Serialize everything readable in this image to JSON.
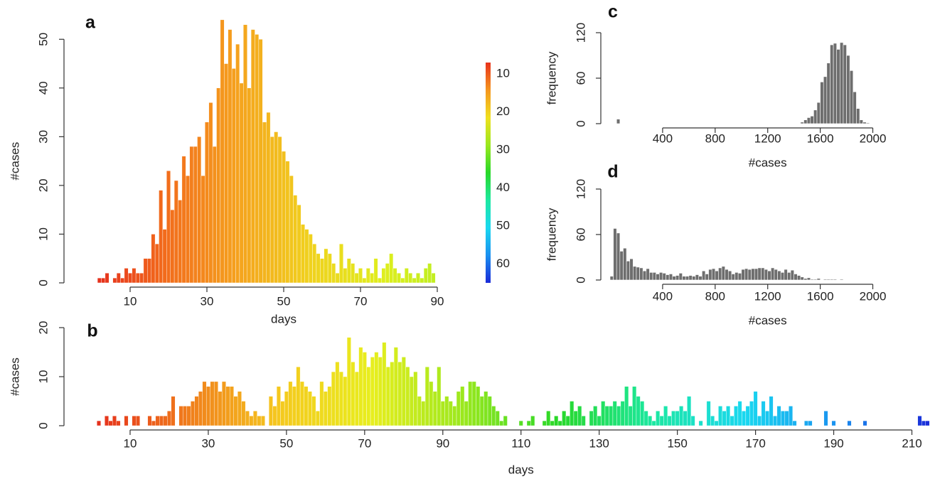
{
  "chart_data": [
    {
      "type": "bar",
      "label": "a",
      "xlabel": "days",
      "ylabel": "#cases",
      "x": [
        1,
        2,
        3,
        4,
        5,
        6,
        7,
        8,
        9,
        10,
        11,
        12,
        13,
        14,
        15,
        16,
        17,
        18,
        19,
        20,
        21,
        22,
        23,
        24,
        25,
        26,
        27,
        28,
        29,
        30,
        31,
        32,
        33,
        34,
        35,
        36,
        37,
        38,
        39,
        40,
        41,
        42,
        43,
        44,
        45,
        46,
        47,
        48,
        49,
        50,
        51,
        52,
        53,
        54,
        55,
        56,
        57,
        58,
        59,
        60,
        61,
        62,
        63,
        64,
        65,
        66,
        67,
        68,
        69,
        70,
        71,
        72,
        73,
        74,
        75,
        76,
        77,
        78,
        79,
        80,
        81,
        82,
        83,
        84,
        85,
        86,
        87,
        88,
        89,
        90
      ],
      "values": [
        0,
        1,
        1,
        2,
        0,
        1,
        2,
        1,
        3,
        2,
        3,
        2,
        2,
        5,
        5,
        10,
        8,
        19,
        11,
        23,
        15,
        21,
        17,
        26,
        22,
        28,
        28,
        30,
        22,
        33,
        37,
        28,
        40,
        54,
        45,
        52,
        44,
        49,
        41,
        53,
        40,
        52,
        51,
        50,
        33,
        35,
        30,
        31,
        30,
        27,
        25,
        22,
        18,
        16,
        12,
        11,
        10,
        8,
        6,
        5,
        7,
        6,
        4,
        2,
        8,
        3,
        5,
        4,
        2,
        3,
        1,
        3,
        2,
        5,
        1,
        3,
        4,
        6,
        3,
        2,
        1,
        3,
        2,
        1,
        2,
        1,
        3,
        4,
        2,
        0
      ],
      "xlim": [
        0,
        95
      ],
      "ylim": [
        0,
        55
      ],
      "xticks": [
        10,
        30,
        50,
        70,
        90
      ],
      "yticks": [
        0,
        10,
        20,
        30,
        40,
        50
      ],
      "colors": [
        "#e42a1c",
        "#f26b1c",
        "#f5a21e",
        "#f0d21e",
        "#dfee1e",
        "#b4ee22"
      ],
      "colorbar": {
        "lim": [
          7,
          65
        ],
        "ticks": [
          10,
          20,
          30,
          40,
          50,
          60
        ],
        "colors": [
          "#e8321c",
          "#f5961e",
          "#f0e01e",
          "#9ae81e",
          "#28d828",
          "#1ce8a0",
          "#1ad8f0",
          "#1a90f0",
          "#1a2ad8"
        ]
      }
    },
    {
      "type": "bar",
      "label": "b",
      "xlabel": "days",
      "ylabel": "#cases",
      "x": [
        1,
        2,
        3,
        4,
        5,
        6,
        7,
        8,
        9,
        10,
        11,
        12,
        13,
        14,
        15,
        16,
        17,
        18,
        19,
        20,
        21,
        22,
        23,
        24,
        25,
        26,
        27,
        28,
        29,
        30,
        31,
        32,
        33,
        34,
        35,
        36,
        37,
        38,
        39,
        40,
        41,
        42,
        43,
        44,
        45,
        46,
        47,
        48,
        49,
        50,
        51,
        52,
        53,
        54,
        55,
        56,
        57,
        58,
        59,
        60,
        61,
        62,
        63,
        64,
        65,
        66,
        67,
        68,
        69,
        70,
        71,
        72,
        73,
        74,
        75,
        76,
        77,
        78,
        79,
        80,
        81,
        82,
        83,
        84,
        85,
        86,
        87,
        88,
        89,
        90,
        91,
        92,
        93,
        94,
        95,
        96,
        97,
        98,
        99,
        100,
        101,
        102,
        103,
        104,
        105,
        106,
        107,
        108,
        109,
        110,
        111,
        112,
        113,
        114,
        115,
        116,
        117,
        118,
        119,
        120,
        121,
        122,
        123,
        124,
        125,
        126,
        127,
        128,
        129,
        130,
        131,
        132,
        133,
        134,
        135,
        136,
        137,
        138,
        139,
        140,
        141,
        142,
        143,
        144,
        145,
        146,
        147,
        148,
        149,
        150,
        151,
        152,
        153,
        154,
        155,
        156,
        157,
        158,
        159,
        160,
        161,
        162,
        163,
        164,
        165,
        166,
        167,
        168,
        169,
        170,
        171,
        172,
        173,
        174,
        175,
        176,
        177,
        178,
        179,
        180,
        181,
        182,
        183,
        184,
        185,
        186,
        187,
        188,
        189,
        190,
        191,
        192,
        193,
        194,
        195,
        196,
        197,
        198,
        199,
        200,
        201,
        202,
        203,
        204,
        205,
        206,
        207,
        208,
        209,
        210,
        211,
        212,
        213,
        214
      ],
      "values": [
        0,
        1,
        0,
        2,
        1,
        2,
        1,
        0,
        2,
        0,
        2,
        2,
        0,
        0,
        2,
        1,
        2,
        2,
        2,
        3,
        6,
        0,
        4,
        4,
        4,
        5,
        6,
        7,
        9,
        8,
        9,
        9,
        7,
        9,
        8,
        8,
        6,
        7,
        5,
        3,
        2,
        3,
        2,
        2,
        0,
        6,
        4,
        8,
        5,
        7,
        9,
        8,
        12,
        9,
        8,
        7,
        6,
        3,
        9,
        7,
        8,
        11,
        13,
        11,
        10,
        18,
        13,
        11,
        16,
        15,
        12,
        14,
        15,
        14,
        17,
        12,
        13,
        16,
        13,
        14,
        12,
        10,
        11,
        6,
        5,
        12,
        9,
        7,
        12,
        5,
        6,
        5,
        4,
        7,
        8,
        5,
        9,
        9,
        8,
        6,
        7,
        6,
        4,
        3,
        1,
        2,
        0,
        0,
        0,
        1,
        0,
        1,
        2,
        0,
        0,
        1,
        3,
        1,
        2,
        1,
        3,
        2,
        5,
        3,
        4,
        2,
        0,
        3,
        4,
        2,
        5,
        4,
        4,
        5,
        4,
        5,
        8,
        4,
        8,
        6,
        5,
        3,
        2,
        1,
        3,
        2,
        4,
        2,
        3,
        3,
        4,
        3,
        6,
        2,
        0,
        1,
        0,
        5,
        2,
        1,
        4,
        3,
        4,
        2,
        4,
        5,
        3,
        4,
        5,
        7,
        2,
        5,
        3,
        6,
        2,
        4,
        3,
        3,
        4,
        1,
        0,
        0,
        1,
        1,
        0,
        0,
        0,
        3,
        0,
        1,
        0,
        0,
        0,
        1,
        0,
        0,
        0,
        1,
        0,
        0,
        0,
        0,
        0,
        0,
        0,
        0,
        0,
        0,
        0,
        0,
        0,
        2,
        1,
        1
      ],
      "xlim": [
        0,
        215
      ],
      "ylim": [
        0,
        20
      ],
      "xticks": [
        10,
        30,
        50,
        70,
        90,
        110,
        130,
        150,
        170,
        190,
        210
      ],
      "yticks": [
        0,
        10,
        20
      ],
      "colors": [
        "#e42a1c",
        "#f07a1c",
        "#f5c81e",
        "#e8ee1e",
        "#9ae81e",
        "#28d828",
        "#1ce8a0",
        "#1ad8f0",
        "#1a90f0",
        "#1a2ad8"
      ]
    },
    {
      "type": "histogram",
      "label": "c",
      "xlabel": "#cases",
      "ylabel": "frequency",
      "color": "#6e6e6e",
      "bins": [
        0,
        25,
        50,
        75,
        100,
        125,
        150,
        175,
        200,
        225,
        250,
        275,
        300,
        325,
        350,
        375,
        400,
        425,
        450,
        475,
        500,
        525,
        550,
        575,
        600,
        625,
        650,
        675,
        700,
        725,
        750,
        775,
        800,
        825,
        850,
        875,
        900,
        925,
        950,
        975,
        1000,
        1025,
        1050,
        1075,
        1100,
        1125,
        1150,
        1175,
        1200,
        1225,
        1250,
        1275,
        1300,
        1325,
        1350,
        1375,
        1400,
        1425,
        1450,
        1475,
        1500,
        1525,
        1550,
        1575,
        1600,
        1625,
        1650,
        1675,
        1700,
        1725,
        1750,
        1775,
        1800,
        1825,
        1850,
        1875,
        1900,
        1925,
        1950,
        1975,
        2000
      ],
      "values": [
        0,
        0,
        6,
        0,
        0,
        0,
        0,
        0,
        0,
        0,
        0,
        0,
        0,
        0,
        0,
        0,
        0,
        0,
        0,
        0,
        0,
        0,
        0,
        0,
        0,
        0,
        0,
        0,
        0,
        0,
        0,
        0,
        0,
        0,
        0,
        0,
        0,
        0,
        0,
        0,
        0,
        0,
        0,
        0,
        0,
        0,
        0,
        0,
        0,
        0,
        0,
        0,
        0,
        0,
        0,
        0,
        0,
        0,
        2,
        5,
        8,
        10,
        18,
        28,
        55,
        62,
        80,
        104,
        106,
        98,
        107,
        104,
        90,
        70,
        42,
        20,
        5,
        2,
        1,
        0
      ],
      "xlim": [
        0,
        2100
      ],
      "ylim": [
        0,
        120
      ],
      "xticks": [
        400,
        800,
        1200,
        1600,
        2000
      ],
      "yticks": [
        0,
        60,
        120
      ]
    },
    {
      "type": "histogram",
      "label": "d",
      "xlabel": "#cases",
      "ylabel": "frequency",
      "color": "#6e6e6e",
      "bins": [
        0,
        25,
        50,
        75,
        100,
        125,
        150,
        175,
        200,
        225,
        250,
        275,
        300,
        325,
        350,
        375,
        400,
        425,
        450,
        475,
        500,
        525,
        550,
        575,
        600,
        625,
        650,
        675,
        700,
        725,
        750,
        775,
        800,
        825,
        850,
        875,
        900,
        925,
        950,
        975,
        1000,
        1025,
        1050,
        1075,
        1100,
        1125,
        1150,
        1175,
        1200,
        1225,
        1250,
        1275,
        1300,
        1325,
        1350,
        1375,
        1400,
        1425,
        1450,
        1475,
        1500,
        1525,
        1550,
        1575,
        1600,
        1625,
        1650,
        1675,
        1700,
        1725,
        1750,
        1775,
        1800,
        1825,
        1850,
        1875,
        1900,
        1925,
        1950,
        1975,
        2000
      ],
      "values": [
        5,
        68,
        62,
        38,
        42,
        25,
        28,
        18,
        17,
        16,
        12,
        15,
        10,
        10,
        8,
        10,
        9,
        7,
        8,
        5,
        6,
        9,
        5,
        5,
        6,
        5,
        7,
        5,
        12,
        8,
        14,
        15,
        12,
        16,
        18,
        14,
        12,
        8,
        10,
        9,
        14,
        15,
        14,
        15,
        15,
        16,
        16,
        14,
        12,
        16,
        14,
        12,
        10,
        14,
        10,
        13,
        8,
        6,
        4,
        2,
        3,
        1,
        1,
        2,
        0,
        1,
        1,
        1,
        1,
        0,
        1,
        0,
        0,
        0,
        0,
        0,
        0,
        0,
        0,
        0
      ],
      "xlim": [
        0,
        2100
      ],
      "ylim": [
        0,
        120
      ],
      "xticks": [
        400,
        800,
        1200,
        1600,
        2000
      ],
      "yticks": [
        0,
        60,
        120
      ]
    }
  ]
}
